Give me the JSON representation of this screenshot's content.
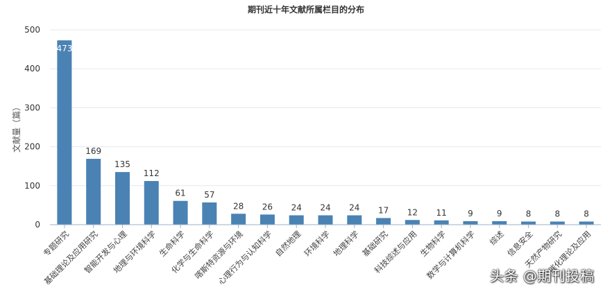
{
  "chart_data": {
    "type": "bar",
    "title": "期刊近十年文献所属栏目的分布",
    "ylabel": "文献量（篇）",
    "xlabel": "",
    "ylim": [
      0,
      500
    ],
    "yticks": [
      0,
      100,
      200,
      300,
      400,
      500
    ],
    "grid": true,
    "categories": [
      "专题研究",
      "基础理论及应用研究",
      "智能开发与心理",
      "地理与环境科学",
      "生命科学",
      "化学与生命科学",
      "喀斯特资源与环境",
      "心理行为与认知科学",
      "自然地理",
      "环境科学",
      "地理科学",
      "基础研究",
      "科技综述与应用",
      "生物科学",
      "数学与计算机科学",
      "综述",
      "信息安全",
      "天然产物研究",
      "催化理论及应用"
    ],
    "values": [
      473,
      169,
      135,
      112,
      61,
      57,
      28,
      26,
      24,
      24,
      24,
      17,
      12,
      11,
      9,
      9,
      8,
      8,
      8
    ],
    "bar_color": "#4a82b4"
  },
  "watermark": "头条 @期刊投稿"
}
